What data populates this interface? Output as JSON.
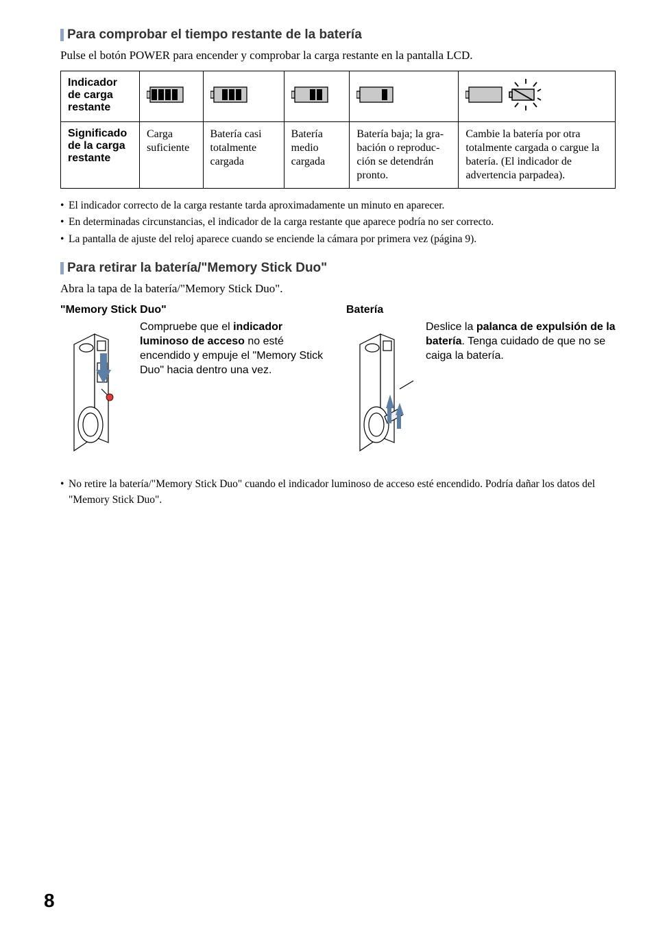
{
  "section1": {
    "heading": "Para comprobar el tiempo restante de la batería",
    "intro": "Pulse el botón POWER para encender y comprobar la carga restante en la pantalla LCD.",
    "table": {
      "row1_header": "Indicador de carga restante",
      "row2_header": "Significado de la carga restante",
      "cells": [
        "Carga suficiente",
        "Batería casi totalmente cargada",
        "Batería medio cargada",
        "Batería baja; la gra­bación o reproduc­ción se detendrán pronto.",
        "Cambie la batería por otra totalmente cargada o cargue la batería. (El indicador de advertencia parpadea)."
      ],
      "battery_levels": [
        4,
        3,
        2,
        1,
        0
      ],
      "icon_colors": {
        "outline": "#000000",
        "fill_bg": "#c9c9c9",
        "fill_bar": "#000000"
      }
    },
    "bullets": [
      "El indicador correcto de la carga restante tarda aproximadamente un minuto en aparecer.",
      "En determinadas circunstancias, el indicador de la carga restante que aparece podría no ser correcto.",
      "La pantalla de ajuste del reloj aparece cuando se enciende la cámara por primera vez (página 9)."
    ]
  },
  "section2": {
    "heading": "Para retirar la batería/\"Memory Stick Duo\"",
    "intro": "Abra la tapa de la batería/\"Memory Stick Duo\".",
    "left": {
      "title": "\"Memory Stick Duo\"",
      "text_pre": "Compruebe que el ",
      "text_bold": "indicador luminoso de acceso",
      "text_post": " no esté encendido y empuje el \"Memory Stick Duo\" hacia dentro una vez."
    },
    "right": {
      "title": "Batería",
      "text_pre": "Deslice la ",
      "text_bold": "palanca de expulsión de la batería",
      "text_post": ". Tenga cuidado de que no se caiga la batería."
    },
    "bullets": [
      "No retire la batería/\"Memory Stick Duo\" cuando el indicador luminoso de acceso esté encendido. Podría dañar los datos del \"Memory Stick Duo\"."
    ]
  },
  "page_number": "8",
  "svg": {
    "arrow_color": "#5b7fa6",
    "camera_stroke": "#000000",
    "camera_fill": "#ffffff"
  }
}
